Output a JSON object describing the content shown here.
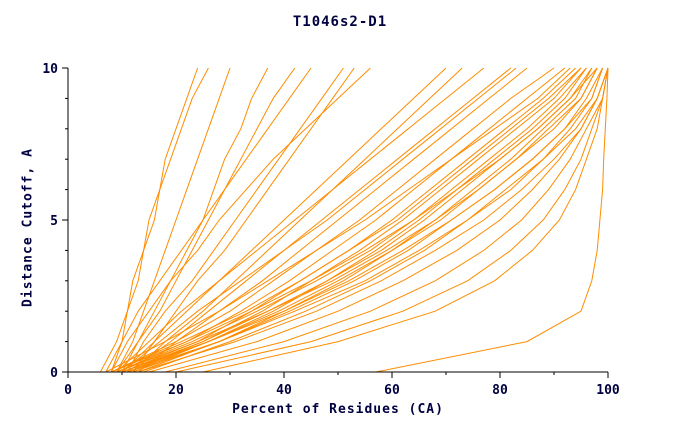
{
  "colors": {
    "line": "#ff8c00",
    "axis": "#000000",
    "text": "#000040",
    "background": "#ffffff"
  },
  "chart_data": {
    "type": "line",
    "title": "T1046s2-D1",
    "xlabel": "Percent of Residues (CA)",
    "ylabel": "Distance Cutoff, A",
    "xlim": [
      0,
      100
    ],
    "ylim": [
      0,
      10
    ],
    "xticks": [
      0,
      20,
      40,
      60,
      80,
      100
    ],
    "xminor": [
      10,
      30,
      50,
      70,
      90
    ],
    "yticks": [
      0,
      5,
      10
    ],
    "yminor": [
      1,
      2,
      3,
      4,
      6,
      7,
      8,
      9
    ],
    "grid": false,
    "legend": "none",
    "cutoffs": [
      0,
      1,
      2,
      3,
      4,
      5,
      6,
      7,
      8,
      9,
      10
    ],
    "series": [
      [
        8,
        10,
        11,
        13,
        14,
        16,
        17,
        19,
        21,
        23,
        26
      ],
      [
        9,
        12,
        14,
        16,
        18,
        20,
        22,
        24,
        26,
        28,
        30
      ],
      [
        10,
        13,
        16,
        19,
        22,
        25,
        27,
        29,
        32,
        34,
        37
      ],
      [
        7,
        10,
        13,
        17,
        21,
        25,
        29,
        33,
        37,
        41,
        45
      ],
      [
        11,
        14,
        18,
        23,
        27,
        31,
        35,
        39,
        43,
        47,
        51
      ],
      [
        6,
        9,
        11,
        12,
        14,
        15,
        17,
        18,
        20,
        22,
        24
      ],
      [
        12,
        16,
        20,
        24,
        29,
        33,
        37,
        41,
        45,
        49,
        53
      ],
      [
        9,
        13,
        17,
        20,
        23,
        26,
        29,
        32,
        35,
        38,
        42
      ],
      [
        8,
        11,
        15,
        19,
        24,
        28,
        33,
        38,
        44,
        50,
        56
      ],
      [
        10,
        16,
        22,
        28,
        34,
        40,
        46,
        52,
        58,
        64,
        70
      ],
      [
        12,
        18,
        25,
        31,
        37,
        43,
        49,
        55,
        61,
        67,
        73
      ],
      [
        9,
        15,
        21,
        28,
        35,
        42,
        49,
        56,
        63,
        70,
        77
      ],
      [
        11,
        19,
        26,
        33,
        40,
        47,
        54,
        61,
        68,
        75,
        82
      ],
      [
        13,
        20,
        28,
        36,
        43,
        50,
        57,
        64,
        71,
        78,
        85
      ],
      [
        10,
        17,
        24,
        32,
        40,
        48,
        55,
        62,
        69,
        76,
        83
      ],
      [
        8,
        20,
        30,
        38,
        46,
        54,
        61,
        68,
        75,
        82,
        90
      ],
      [
        9,
        22,
        32,
        41,
        49,
        57,
        64,
        71,
        78,
        85,
        92
      ],
      [
        10,
        24,
        34,
        43,
        52,
        60,
        67,
        74,
        81,
        88,
        94
      ],
      [
        7,
        18,
        28,
        37,
        46,
        55,
        63,
        71,
        79,
        87,
        93
      ],
      [
        11,
        25,
        36,
        45,
        54,
        62,
        69,
        76,
        83,
        90,
        95
      ],
      [
        8,
        21,
        33,
        43,
        52,
        61,
        68,
        75,
        82,
        89,
        95
      ],
      [
        12,
        26,
        38,
        48,
        57,
        65,
        72,
        79,
        86,
        92,
        96
      ],
      [
        9,
        23,
        35,
        46,
        56,
        64,
        71,
        78,
        85,
        91,
        96
      ],
      [
        10,
        25,
        37,
        48,
        58,
        66,
        73,
        80,
        87,
        93,
        97
      ],
      [
        13,
        28,
        40,
        51,
        60,
        68,
        75,
        82,
        88,
        94,
        97
      ],
      [
        8,
        22,
        34,
        45,
        55,
        64,
        72,
        80,
        87,
        93,
        98
      ],
      [
        11,
        26,
        39,
        50,
        60,
        69,
        76,
        83,
        89,
        95,
        98
      ],
      [
        9,
        24,
        37,
        49,
        59,
        68,
        76,
        83,
        90,
        95,
        98
      ],
      [
        12,
        28,
        41,
        53,
        63,
        71,
        79,
        86,
        92,
        96,
        99
      ],
      [
        10,
        26,
        40,
        52,
        62,
        71,
        79,
        86,
        92,
        97,
        99
      ],
      [
        14,
        30,
        44,
        56,
        66,
        74,
        81,
        88,
        93,
        97,
        99
      ],
      [
        11,
        28,
        42,
        55,
        65,
        74,
        82,
        88,
        94,
        98,
        100
      ],
      [
        13,
        31,
        46,
        58,
        68,
        77,
        84,
        90,
        95,
        98,
        100
      ],
      [
        15,
        35,
        50,
        62,
        72,
        80,
        86,
        91,
        95,
        98,
        100
      ],
      [
        18,
        40,
        56,
        68,
        77,
        84,
        89,
        93,
        96,
        99,
        100
      ],
      [
        20,
        45,
        62,
        74,
        82,
        88,
        92,
        95,
        97,
        99,
        100
      ],
      [
        25,
        50,
        68,
        79,
        86,
        91,
        94,
        96,
        98,
        99,
        100
      ],
      [
        57,
        85,
        95,
        97,
        98,
        98.5,
        99,
        99.2,
        99.5,
        99.8,
        100
      ]
    ]
  }
}
